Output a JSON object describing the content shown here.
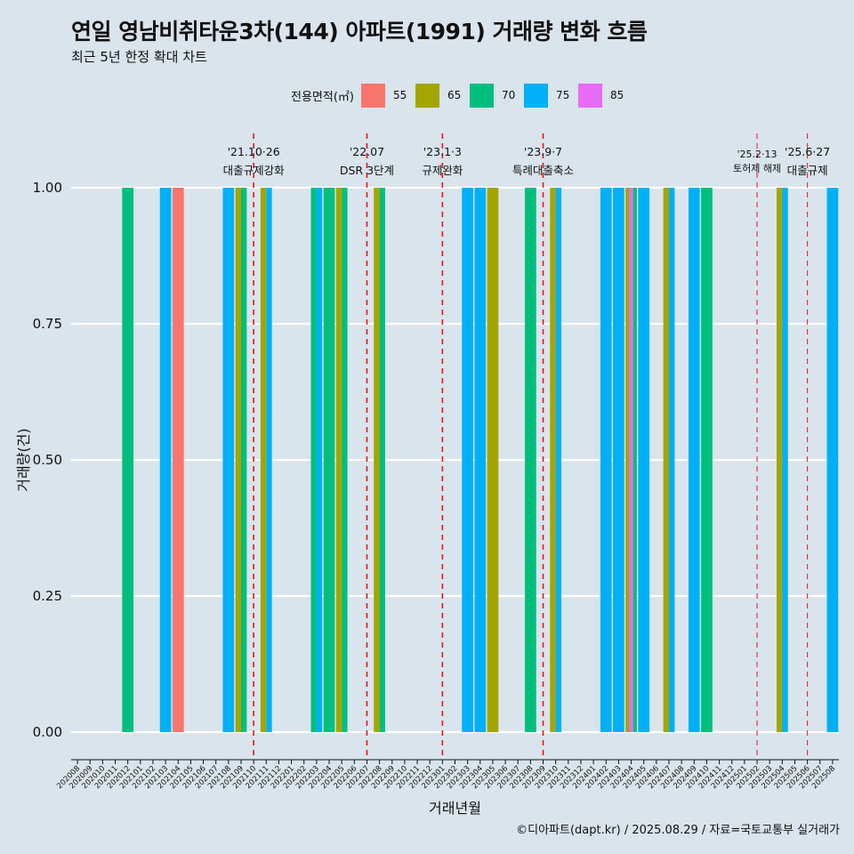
{
  "header": {
    "title": "연일 영남비취타운3차(144) 아파트(1991) 거래량 변화 흐름",
    "subtitle": "최근 5년 한정 확대 차트"
  },
  "legend": {
    "title": "전용면적(㎡)",
    "items": [
      {
        "label": "55",
        "color": "#F8766D"
      },
      {
        "label": "65",
        "color": "#A3A500"
      },
      {
        "label": "70",
        "color": "#00BF7D"
      },
      {
        "label": "75",
        "color": "#00B0F6"
      },
      {
        "label": "85",
        "color": "#E76BF3"
      }
    ]
  },
  "caption": "©디아파트(dapt.kr) / 2025.08.29 / 자료=국토교통부 실거래가",
  "chart_data": {
    "type": "bar",
    "xlabel": "거래년월",
    "ylabel": "거래량(건)",
    "ylim": [
      0,
      1
    ],
    "yticks": [
      "0.00",
      "0.25",
      "0.50",
      "0.75",
      "1.00"
    ],
    "grid": true,
    "legend_position": "top",
    "categories": [
      "202008",
      "202009",
      "202010",
      "202011",
      "202012",
      "202101",
      "202102",
      "202103",
      "202104",
      "202105",
      "202106",
      "202107",
      "202108",
      "202109",
      "202110",
      "202111",
      "202112",
      "202201",
      "202202",
      "202203",
      "202204",
      "202205",
      "202206",
      "202207",
      "202208",
      "202209",
      "202210",
      "202211",
      "202212",
      "202301",
      "202302",
      "202303",
      "202304",
      "202305",
      "202306",
      "202307",
      "202308",
      "202309",
      "202310",
      "202311",
      "202312",
      "202401",
      "202402",
      "202403",
      "202404",
      "202405",
      "202406",
      "202407",
      "202408",
      "202409",
      "202410",
      "202411",
      "202412",
      "202501",
      "202502",
      "202503",
      "202504",
      "202505",
      "202506",
      "202507",
      "202508"
    ],
    "bars": [
      {
        "month": "202012",
        "area": "70",
        "value": 1
      },
      {
        "month": "202103",
        "area": "75",
        "value": 1
      },
      {
        "month": "202104",
        "area": "55",
        "value": 1
      },
      {
        "month": "202108",
        "area": "75",
        "value": 1
      },
      {
        "month": "202109",
        "area": "65",
        "value": 1
      },
      {
        "month": "202109",
        "area": "70",
        "value": 1
      },
      {
        "month": "202111",
        "area": "65",
        "value": 1
      },
      {
        "month": "202111",
        "area": "75",
        "value": 1
      },
      {
        "month": "202203",
        "area": "70",
        "value": 1
      },
      {
        "month": "202203",
        "area": "75",
        "value": 1
      },
      {
        "month": "202204",
        "area": "70",
        "value": 1
      },
      {
        "month": "202205",
        "area": "65",
        "value": 1
      },
      {
        "month": "202205",
        "area": "70",
        "value": 1
      },
      {
        "month": "202208",
        "area": "65",
        "value": 1
      },
      {
        "month": "202208",
        "area": "70",
        "value": 1
      },
      {
        "month": "202303",
        "area": "75",
        "value": 1
      },
      {
        "month": "202304",
        "area": "75",
        "value": 1
      },
      {
        "month": "202305",
        "area": "65",
        "value": 1
      },
      {
        "month": "202308",
        "area": "70",
        "value": 1
      },
      {
        "month": "202310",
        "area": "65",
        "value": 1
      },
      {
        "month": "202310",
        "area": "75",
        "value": 1
      },
      {
        "month": "202402",
        "area": "75",
        "value": 1
      },
      {
        "month": "202403",
        "area": "75",
        "value": 1
      },
      {
        "month": "202404",
        "area": "65",
        "value": 1
      },
      {
        "month": "202404",
        "area": "85",
        "value": 1
      },
      {
        "month": "202404",
        "area": "70",
        "value": 1
      },
      {
        "month": "202405",
        "area": "75",
        "value": 1
      },
      {
        "month": "202407",
        "area": "65",
        "value": 1
      },
      {
        "month": "202407",
        "area": "75",
        "value": 1
      },
      {
        "month": "202409",
        "area": "75",
        "value": 1
      },
      {
        "month": "202410",
        "area": "70",
        "value": 1
      },
      {
        "month": "202504",
        "area": "65",
        "value": 1
      },
      {
        "month": "202504",
        "area": "75",
        "value": 1
      },
      {
        "month": "202508",
        "area": "75",
        "value": 1
      }
    ],
    "events": [
      {
        "month": "202110",
        "date": "'21.10·26",
        "label": "대출규제강화"
      },
      {
        "month": "202207",
        "date": "'22.07",
        "label": "DSR 3단계"
      },
      {
        "month": "202301",
        "date": "'23.1·3",
        "label": "규제완화"
      },
      {
        "month": "202309",
        "date": "'23.9·7",
        "label": "특례대출축소"
      },
      {
        "month": "202502",
        "date": "'25.2·13",
        "label": "토허제 해제"
      },
      {
        "month": "202506",
        "date": "'25.6·27",
        "label": "대출규제"
      }
    ]
  }
}
